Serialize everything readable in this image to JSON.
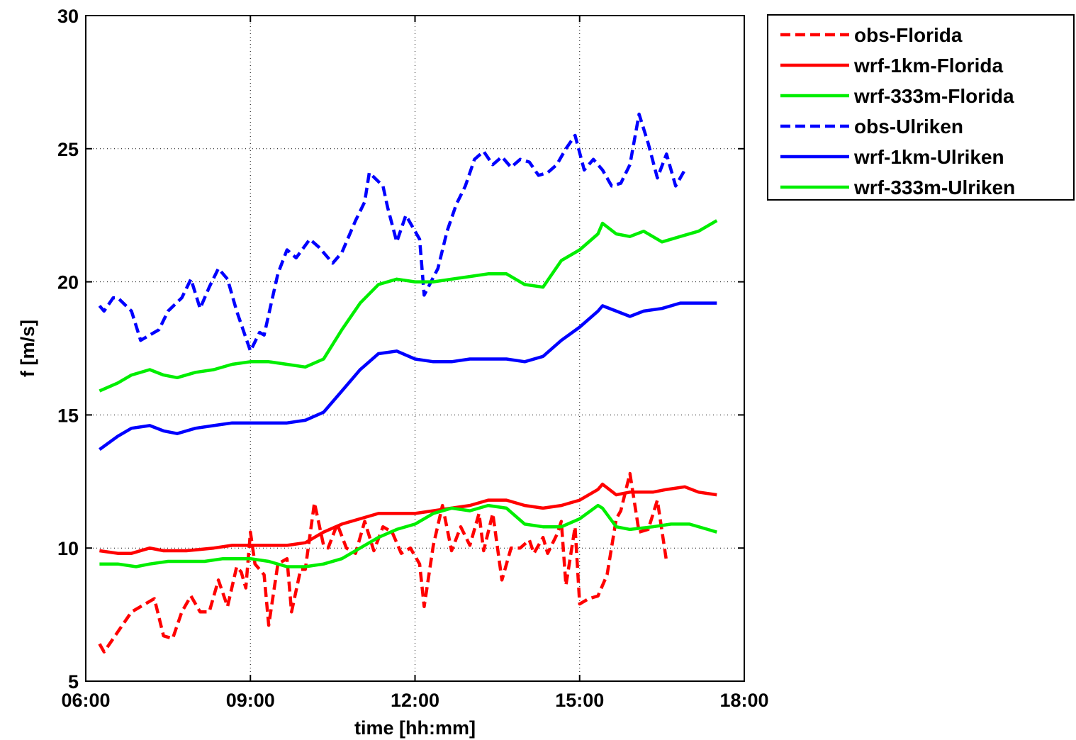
{
  "chart_data": {
    "type": "line",
    "title": "",
    "xlabel": "time [hh:mm]",
    "ylabel": "f [m/s]",
    "xlim": [
      "06:00",
      "18:00"
    ],
    "ylim": [
      5,
      30
    ],
    "grid": true,
    "legend_position": "outside-top-right",
    "x_ticks": [
      "06:00",
      "09:00",
      "12:00",
      "15:00",
      "18:00"
    ],
    "y_ticks": [
      "5",
      "10",
      "15",
      "20",
      "25",
      "30"
    ],
    "series": [
      {
        "name": "obs-Florida",
        "color": "#ff0000",
        "style": "dashed",
        "points": [
          [
            "06:15",
            6.4
          ],
          [
            "06:20",
            6.1
          ],
          [
            "06:40",
            7.1
          ],
          [
            "06:50",
            7.6
          ],
          [
            "07:15",
            8.1
          ],
          [
            "07:25",
            6.7
          ],
          [
            "07:35",
            6.6
          ],
          [
            "07:45",
            7.6
          ],
          [
            "07:55",
            8.2
          ],
          [
            "08:05",
            7.6
          ],
          [
            "08:15",
            7.6
          ],
          [
            "08:25",
            8.8
          ],
          [
            "08:35",
            7.8
          ],
          [
            "08:45",
            9.3
          ],
          [
            "08:50",
            9.1
          ],
          [
            "08:55",
            8.5
          ],
          [
            "09:00",
            10.6
          ],
          [
            "09:05",
            9.4
          ],
          [
            "09:15",
            9.0
          ],
          [
            "09:20",
            7.1
          ],
          [
            "09:30",
            9.4
          ],
          [
            "09:40",
            9.6
          ],
          [
            "09:45",
            7.6
          ],
          [
            "09:55",
            9.2
          ],
          [
            "10:00",
            9.2
          ],
          [
            "10:10",
            11.7
          ],
          [
            "10:20",
            10.1
          ],
          [
            "10:25",
            10.0
          ],
          [
            "10:35",
            10.9
          ],
          [
            "10:45",
            10.0
          ],
          [
            "10:55",
            9.8
          ],
          [
            "11:05",
            11.0
          ],
          [
            "11:15",
            9.9
          ],
          [
            "11:25",
            10.8
          ],
          [
            "11:35",
            10.6
          ],
          [
            "11:45",
            9.8
          ],
          [
            "11:55",
            10.0
          ],
          [
            "12:05",
            9.4
          ],
          [
            "12:10",
            7.8
          ],
          [
            "12:20",
            10.1
          ],
          [
            "12:30",
            11.6
          ],
          [
            "12:40",
            9.9
          ],
          [
            "12:50",
            10.8
          ],
          [
            "13:00",
            10.1
          ],
          [
            "13:10",
            11.3
          ],
          [
            "13:15",
            9.9
          ],
          [
            "13:25",
            11.3
          ],
          [
            "13:35",
            8.8
          ],
          [
            "13:45",
            10.0
          ],
          [
            "13:55",
            10.0
          ],
          [
            "14:05",
            10.3
          ],
          [
            "14:10",
            9.8
          ],
          [
            "14:20",
            10.4
          ],
          [
            "14:25",
            9.8
          ],
          [
            "14:35",
            10.5
          ],
          [
            "14:40",
            11.0
          ],
          [
            "14:45",
            8.6
          ],
          [
            "14:55",
            10.8
          ],
          [
            "15:00",
            7.9
          ],
          [
            "15:10",
            8.1
          ],
          [
            "15:20",
            8.2
          ],
          [
            "15:30",
            9.0
          ],
          [
            "15:40",
            11.1
          ],
          [
            "15:45",
            11.4
          ],
          [
            "15:55",
            12.8
          ],
          [
            "16:05",
            10.6
          ],
          [
            "16:15",
            10.7
          ],
          [
            "16:25",
            11.8
          ],
          [
            "16:35",
            9.5
          ]
        ]
      },
      {
        "name": "wrf-1km-Florida",
        "color": "#ff0000",
        "style": "solid",
        "points": [
          [
            "06:15",
            9.9
          ],
          [
            "06:35",
            9.8
          ],
          [
            "06:50",
            9.8
          ],
          [
            "07:10",
            10.0
          ],
          [
            "07:25",
            9.9
          ],
          [
            "07:50",
            9.9
          ],
          [
            "08:20",
            10.0
          ],
          [
            "08:40",
            10.1
          ],
          [
            "09:00",
            10.1
          ],
          [
            "09:20",
            10.1
          ],
          [
            "09:40",
            10.1
          ],
          [
            "10:00",
            10.2
          ],
          [
            "10:20",
            10.6
          ],
          [
            "10:40",
            10.9
          ],
          [
            "11:00",
            11.1
          ],
          [
            "11:20",
            11.3
          ],
          [
            "11:40",
            11.3
          ],
          [
            "12:00",
            11.3
          ],
          [
            "12:20",
            11.4
          ],
          [
            "12:40",
            11.5
          ],
          [
            "13:00",
            11.6
          ],
          [
            "13:20",
            11.8
          ],
          [
            "13:40",
            11.8
          ],
          [
            "14:00",
            11.6
          ],
          [
            "14:20",
            11.5
          ],
          [
            "14:40",
            11.6
          ],
          [
            "15:00",
            11.8
          ],
          [
            "15:20",
            12.2
          ],
          [
            "15:25",
            12.4
          ],
          [
            "15:40",
            12.0
          ],
          [
            "15:55",
            12.1
          ],
          [
            "16:20",
            12.1
          ],
          [
            "16:35",
            12.2
          ],
          [
            "16:55",
            12.3
          ],
          [
            "17:10",
            12.1
          ],
          [
            "17:30",
            12.0
          ]
        ]
      },
      {
        "name": "wrf-333m-Florida",
        "color": "#00ee00",
        "style": "solid",
        "points": [
          [
            "06:15",
            9.4
          ],
          [
            "06:35",
            9.4
          ],
          [
            "06:55",
            9.3
          ],
          [
            "07:10",
            9.4
          ],
          [
            "07:30",
            9.5
          ],
          [
            "07:50",
            9.5
          ],
          [
            "08:10",
            9.5
          ],
          [
            "08:30",
            9.6
          ],
          [
            "09:00",
            9.6
          ],
          [
            "09:20",
            9.5
          ],
          [
            "09:40",
            9.3
          ],
          [
            "10:00",
            9.3
          ],
          [
            "10:20",
            9.4
          ],
          [
            "10:40",
            9.6
          ],
          [
            "11:00",
            10.0
          ],
          [
            "11:20",
            10.4
          ],
          [
            "11:40",
            10.7
          ],
          [
            "12:00",
            10.9
          ],
          [
            "12:20",
            11.3
          ],
          [
            "12:40",
            11.5
          ],
          [
            "13:00",
            11.4
          ],
          [
            "13:20",
            11.6
          ],
          [
            "13:40",
            11.5
          ],
          [
            "14:00",
            10.9
          ],
          [
            "14:20",
            10.8
          ],
          [
            "14:40",
            10.8
          ],
          [
            "15:00",
            11.1
          ],
          [
            "15:20",
            11.6
          ],
          [
            "15:25",
            11.5
          ],
          [
            "15:40",
            10.8
          ],
          [
            "15:55",
            10.7
          ],
          [
            "16:20",
            10.8
          ],
          [
            "16:40",
            10.9
          ],
          [
            "17:00",
            10.9
          ],
          [
            "17:20",
            10.7
          ],
          [
            "17:30",
            10.6
          ]
        ]
      },
      {
        "name": "obs-Ulriken",
        "color": "#0000ff",
        "style": "dashed",
        "points": [
          [
            "06:15",
            19.1
          ],
          [
            "06:20",
            18.9
          ],
          [
            "06:30",
            19.4
          ],
          [
            "06:35",
            19.4
          ],
          [
            "06:50",
            18.9
          ],
          [
            "07:00",
            17.8
          ],
          [
            "07:10",
            18.0
          ],
          [
            "07:20",
            18.2
          ],
          [
            "07:30",
            18.9
          ],
          [
            "07:45",
            19.4
          ],
          [
            "07:55",
            20.1
          ],
          [
            "08:05",
            19.0
          ],
          [
            "08:15",
            19.8
          ],
          [
            "08:25",
            20.5
          ],
          [
            "08:35",
            20.1
          ],
          [
            "08:45",
            18.9
          ],
          [
            "09:00",
            17.4
          ],
          [
            "09:10",
            18.1
          ],
          [
            "09:15",
            18.0
          ],
          [
            "09:30",
            20.3
          ],
          [
            "09:40",
            21.2
          ],
          [
            "09:50",
            20.9
          ],
          [
            "10:05",
            21.6
          ],
          [
            "10:15",
            21.3
          ],
          [
            "10:30",
            20.7
          ],
          [
            "10:40",
            21.1
          ],
          [
            "10:55",
            22.3
          ],
          [
            "11:05",
            23.0
          ],
          [
            "11:10",
            24.1
          ],
          [
            "11:25",
            23.6
          ],
          [
            "11:30",
            22.8
          ],
          [
            "11:40",
            21.5
          ],
          [
            "11:50",
            22.5
          ],
          [
            "12:00",
            21.9
          ],
          [
            "12:05",
            21.6
          ],
          [
            "12:10",
            19.5
          ],
          [
            "12:25",
            20.5
          ],
          [
            "12:35",
            21.9
          ],
          [
            "12:45",
            22.9
          ],
          [
            "12:55",
            23.6
          ],
          [
            "13:05",
            24.6
          ],
          [
            "13:15",
            24.9
          ],
          [
            "13:25",
            24.4
          ],
          [
            "13:35",
            24.7
          ],
          [
            "13:45",
            24.3
          ],
          [
            "13:55",
            24.6
          ],
          [
            "14:05",
            24.5
          ],
          [
            "14:15",
            24.0
          ],
          [
            "14:25",
            24.1
          ],
          [
            "14:35",
            24.4
          ],
          [
            "14:45",
            25.0
          ],
          [
            "14:55",
            25.5
          ],
          [
            "15:05",
            24.2
          ],
          [
            "15:15",
            24.6
          ],
          [
            "15:25",
            24.2
          ],
          [
            "15:35",
            23.6
          ],
          [
            "15:45",
            23.7
          ],
          [
            "15:55",
            24.4
          ],
          [
            "16:05",
            26.3
          ],
          [
            "16:15",
            25.2
          ],
          [
            "16:25",
            23.9
          ],
          [
            "16:35",
            24.8
          ],
          [
            "16:45",
            23.6
          ],
          [
            "16:55",
            24.2
          ]
        ]
      },
      {
        "name": "wrf-1km-Ulriken",
        "color": "#0000ff",
        "style": "solid",
        "points": [
          [
            "06:15",
            13.7
          ],
          [
            "06:35",
            14.2
          ],
          [
            "06:50",
            14.5
          ],
          [
            "07:10",
            14.6
          ],
          [
            "07:25",
            14.4
          ],
          [
            "07:40",
            14.3
          ],
          [
            "08:00",
            14.5
          ],
          [
            "08:20",
            14.6
          ],
          [
            "08:40",
            14.7
          ],
          [
            "09:00",
            14.7
          ],
          [
            "09:20",
            14.7
          ],
          [
            "09:40",
            14.7
          ],
          [
            "10:00",
            14.8
          ],
          [
            "10:20",
            15.1
          ],
          [
            "10:40",
            15.9
          ],
          [
            "11:00",
            16.7
          ],
          [
            "11:20",
            17.3
          ],
          [
            "11:40",
            17.4
          ],
          [
            "12:00",
            17.1
          ],
          [
            "12:20",
            17.0
          ],
          [
            "12:40",
            17.0
          ],
          [
            "13:00",
            17.1
          ],
          [
            "13:20",
            17.1
          ],
          [
            "13:40",
            17.1
          ],
          [
            "14:00",
            17.0
          ],
          [
            "14:20",
            17.2
          ],
          [
            "14:40",
            17.8
          ],
          [
            "15:00",
            18.3
          ],
          [
            "15:20",
            18.9
          ],
          [
            "15:25",
            19.1
          ],
          [
            "15:40",
            18.9
          ],
          [
            "15:55",
            18.7
          ],
          [
            "16:10",
            18.9
          ],
          [
            "16:30",
            19.0
          ],
          [
            "16:50",
            19.2
          ],
          [
            "17:10",
            19.2
          ],
          [
            "17:30",
            19.2
          ]
        ]
      },
      {
        "name": "wrf-333m-Ulriken",
        "color": "#00ee00",
        "style": "solid",
        "points": [
          [
            "06:15",
            15.9
          ],
          [
            "06:35",
            16.2
          ],
          [
            "06:50",
            16.5
          ],
          [
            "07:10",
            16.7
          ],
          [
            "07:25",
            16.5
          ],
          [
            "07:40",
            16.4
          ],
          [
            "08:00",
            16.6
          ],
          [
            "08:20",
            16.7
          ],
          [
            "08:40",
            16.9
          ],
          [
            "09:00",
            17.0
          ],
          [
            "09:20",
            17.0
          ],
          [
            "09:40",
            16.9
          ],
          [
            "10:00",
            16.8
          ],
          [
            "10:20",
            17.1
          ],
          [
            "10:40",
            18.2
          ],
          [
            "11:00",
            19.2
          ],
          [
            "11:20",
            19.9
          ],
          [
            "11:40",
            20.1
          ],
          [
            "12:00",
            20.0
          ],
          [
            "12:20",
            20.0
          ],
          [
            "12:40",
            20.1
          ],
          [
            "13:00",
            20.2
          ],
          [
            "13:20",
            20.3
          ],
          [
            "13:40",
            20.3
          ],
          [
            "14:00",
            19.9
          ],
          [
            "14:20",
            19.8
          ],
          [
            "14:40",
            20.8
          ],
          [
            "15:00",
            21.2
          ],
          [
            "15:20",
            21.8
          ],
          [
            "15:25",
            22.2
          ],
          [
            "15:40",
            21.8
          ],
          [
            "15:55",
            21.7
          ],
          [
            "16:10",
            21.9
          ],
          [
            "16:30",
            21.5
          ],
          [
            "16:50",
            21.7
          ],
          [
            "17:10",
            21.9
          ],
          [
            "17:30",
            22.3
          ]
        ]
      }
    ]
  }
}
